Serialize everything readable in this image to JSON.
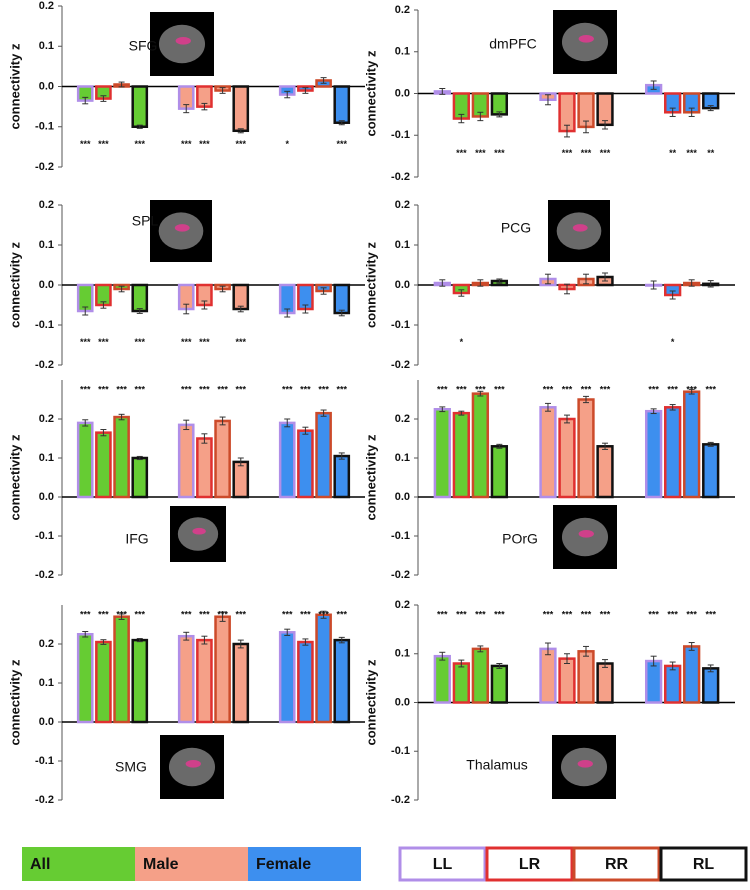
{
  "legend": {
    "groups": [
      {
        "name": "All",
        "color": "#66cc33"
      },
      {
        "name": "Male",
        "color": "#f5a088"
      },
      {
        "name": "Female",
        "color": "#3d8fef"
      }
    ],
    "conditions": [
      {
        "name": "LL",
        "color": "#b08ee8"
      },
      {
        "name": "LR",
        "color": "#e03030"
      },
      {
        "name": "RR",
        "color": "#cc4a2a"
      },
      {
        "name": "RL",
        "color": "#111111"
      }
    ]
  },
  "chart_data": [
    {
      "type": "bar",
      "title": "SFG",
      "ylabel": "connectivity z",
      "ylim": [
        -0.2,
        0.2
      ],
      "yticks": [
        -0.2,
        -0.1,
        {
          "value": 0,
          "label": "0.0"
        },
        0.1,
        0.2
      ],
      "series": [
        {
          "values": [
            -0.035,
            -0.055,
            -0.02
          ],
          "errors": [
            0.008,
            0.01,
            0.008
          ],
          "stars": [
            "***",
            "***",
            "*"
          ]
        },
        {
          "values": [
            -0.03,
            -0.05,
            -0.01
          ],
          "errors": [
            0.007,
            0.008,
            0.007
          ],
          "stars": [
            "***",
            "***",
            null
          ]
        },
        {
          "values": [
            0.005,
            -0.01,
            0.015
          ],
          "errors": [
            0.006,
            0.007,
            0.007
          ],
          "stars": [
            null,
            null,
            null
          ]
        },
        {
          "values": [
            -0.1,
            -0.11,
            -0.09
          ],
          "errors": [
            0.004,
            0.005,
            0.005
          ],
          "stars": [
            "***",
            "***",
            "***"
          ]
        }
      ]
    },
    {
      "type": "bar",
      "title": "dmPFC",
      "ylabel": "connectivity z",
      "ylim": [
        -0.2,
        0.2
      ],
      "yticks": [
        -0.2,
        -0.1,
        {
          "value": 0,
          "label": "0.0"
        },
        0.1,
        0.2
      ],
      "series": [
        {
          "values": [
            0.005,
            -0.015,
            0.02
          ],
          "errors": [
            0.007,
            0.012,
            0.01
          ],
          "stars": [
            null,
            null,
            null
          ]
        },
        {
          "values": [
            -0.06,
            -0.09,
            -0.045
          ],
          "errors": [
            0.01,
            0.014,
            0.01
          ],
          "stars": [
            "***",
            "***",
            "**"
          ]
        },
        {
          "values": [
            -0.055,
            -0.08,
            -0.045
          ],
          "errors": [
            0.01,
            0.014,
            0.01
          ],
          "stars": [
            "***",
            "***",
            "***"
          ]
        },
        {
          "values": [
            -0.05,
            -0.075,
            -0.035
          ],
          "errors": [
            0.006,
            0.01,
            0.006
          ],
          "stars": [
            "***",
            "***",
            "**"
          ]
        }
      ]
    },
    {
      "type": "bar",
      "title": "SPL",
      "ylabel": "connectivity z",
      "ylim": [
        -0.2,
        0.2
      ],
      "yticks": [
        -0.2,
        -0.1,
        {
          "value": 0,
          "label": "0.0"
        },
        0.1,
        0.2
      ],
      "series": [
        {
          "values": [
            -0.065,
            -0.06,
            -0.07
          ],
          "errors": [
            0.01,
            0.012,
            0.01
          ],
          "stars": [
            "***",
            "***",
            null
          ]
        },
        {
          "values": [
            -0.05,
            -0.05,
            -0.06
          ],
          "errors": [
            0.008,
            0.01,
            0.01
          ],
          "stars": [
            "***",
            "***",
            null
          ]
        },
        {
          "values": [
            -0.01,
            -0.01,
            -0.015
          ],
          "errors": [
            0.007,
            0.007,
            0.008
          ],
          "stars": [
            null,
            null,
            null
          ]
        },
        {
          "values": [
            -0.065,
            -0.06,
            -0.07
          ],
          "errors": [
            0.006,
            0.007,
            0.007
          ],
          "stars": [
            "***",
            "***",
            null
          ]
        }
      ]
    },
    {
      "type": "bar",
      "title": "PCG",
      "ylabel": "connectivity z",
      "ylim": [
        -0.2,
        0.2
      ],
      "yticks": [
        -0.2,
        -0.1,
        {
          "value": 0,
          "label": "0.0"
        },
        0.1,
        0.2
      ],
      "series": [
        {
          "values": [
            0.005,
            0.015,
            0
          ],
          "errors": [
            0.008,
            0.012,
            0.01
          ],
          "stars": [
            null,
            null,
            null
          ]
        },
        {
          "values": [
            -0.02,
            -0.01,
            -0.025
          ],
          "errors": [
            0.008,
            0.012,
            0.01
          ],
          "stars": [
            "*",
            null,
            "*"
          ]
        },
        {
          "values": [
            0.005,
            0.015,
            0.005
          ],
          "errors": [
            0.008,
            0.012,
            0.008
          ],
          "stars": [
            null,
            null,
            null
          ]
        },
        {
          "values": [
            0.01,
            0.02,
            0.003
          ],
          "errors": [
            0.005,
            0.01,
            0.008
          ],
          "stars": [
            null,
            null,
            null
          ]
        }
      ]
    },
    {
      "type": "bar",
      "title": "IFG",
      "ylabel": "connectivity z",
      "ylim": [
        -0.2,
        0.3
      ],
      "yticks": [
        -0.2,
        -0.1,
        {
          "value": 0,
          "label": "0.0"
        },
        0.1,
        0.2
      ],
      "series": [
        {
          "values": [
            0.19,
            0.185,
            0.19
          ],
          "errors": [
            0.008,
            0.012,
            0.01
          ],
          "stars": [
            "***",
            "***",
            "***"
          ]
        },
        {
          "values": [
            0.165,
            0.15,
            0.17
          ],
          "errors": [
            0.008,
            0.012,
            0.009
          ],
          "stars": [
            "***",
            "***",
            "***"
          ]
        },
        {
          "values": [
            0.205,
            0.195,
            0.215
          ],
          "errors": [
            0.007,
            0.01,
            0.008
          ],
          "stars": [
            "***",
            "***",
            "***"
          ]
        },
        {
          "values": [
            0.1,
            0.09,
            0.105
          ],
          "errors": [
            0.004,
            0.01,
            0.008
          ],
          "stars": [
            "***",
            "***",
            "***"
          ]
        }
      ]
    },
    {
      "type": "bar",
      "title": "POrG",
      "ylabel": "connectivity z",
      "ylim": [
        -0.2,
        0.3
      ],
      "yticks": [
        -0.2,
        -0.1,
        {
          "value": 0,
          "label": "0.0"
        },
        0.1,
        0.2
      ],
      "series": [
        {
          "values": [
            0.225,
            0.23,
            0.22
          ],
          "errors": [
            0.006,
            0.01,
            0.006
          ],
          "stars": [
            "***",
            "***",
            "***"
          ]
        },
        {
          "values": [
            0.215,
            0.2,
            0.23
          ],
          "errors": [
            0.005,
            0.01,
            0.007
          ],
          "stars": [
            "***",
            "***",
            "***"
          ]
        },
        {
          "values": [
            0.265,
            0.25,
            0.27
          ],
          "errors": [
            0.006,
            0.008,
            0.006
          ],
          "stars": [
            "***",
            "***",
            "***"
          ]
        },
        {
          "values": [
            0.13,
            0.13,
            0.135
          ],
          "errors": [
            0.005,
            0.008,
            0.005
          ],
          "stars": [
            "***",
            "***",
            "***"
          ]
        }
      ]
    },
    {
      "type": "bar",
      "title": "SMG",
      "ylabel": "connectivity z",
      "ylim": [
        -0.2,
        0.3
      ],
      "yticks": [
        -0.2,
        -0.1,
        {
          "value": 0,
          "label": "0.0"
        },
        0.1,
        0.2
      ],
      "series": [
        {
          "values": [
            0.225,
            0.22,
            0.23
          ],
          "errors": [
            0.007,
            0.01,
            0.008
          ],
          "stars": [
            "***",
            "***",
            "***"
          ]
        },
        {
          "values": [
            0.205,
            0.21,
            0.205
          ],
          "errors": [
            0.006,
            0.01,
            0.008
          ],
          "stars": [
            "***",
            "***",
            "***"
          ]
        },
        {
          "values": [
            0.27,
            0.27,
            0.275
          ],
          "errors": [
            0.007,
            0.012,
            0.009
          ],
          "stars": [
            "***",
            "***",
            "***"
          ]
        },
        {
          "values": [
            0.21,
            0.2,
            0.21
          ],
          "errors": [
            0.004,
            0.01,
            0.007
          ],
          "stars": [
            "***",
            "***",
            "***"
          ]
        }
      ]
    },
    {
      "type": "bar",
      "title": "Thalamus",
      "ylabel": "connectivity z",
      "ylim": [
        -0.2,
        0.2
      ],
      "yticks": [
        -0.2,
        -0.1,
        {
          "value": 0,
          "label": "0.0"
        },
        0.1,
        0.2
      ],
      "series": [
        {
          "values": [
            0.095,
            0.11,
            0.085
          ],
          "errors": [
            0.008,
            0.012,
            0.01
          ],
          "stars": [
            "***",
            "***",
            "***"
          ]
        },
        {
          "values": [
            0.08,
            0.09,
            0.075
          ],
          "errors": [
            0.007,
            0.01,
            0.008
          ],
          "stars": [
            "***",
            "***",
            "***"
          ]
        },
        {
          "values": [
            0.11,
            0.105,
            0.115
          ],
          "errors": [
            0.006,
            0.01,
            0.008
          ],
          "stars": [
            "***",
            "***",
            "***"
          ]
        },
        {
          "values": [
            0.075,
            0.08,
            0.07
          ],
          "errors": [
            0.005,
            0.008,
            0.007
          ],
          "stars": [
            "***",
            "***",
            "***"
          ]
        }
      ]
    }
  ]
}
